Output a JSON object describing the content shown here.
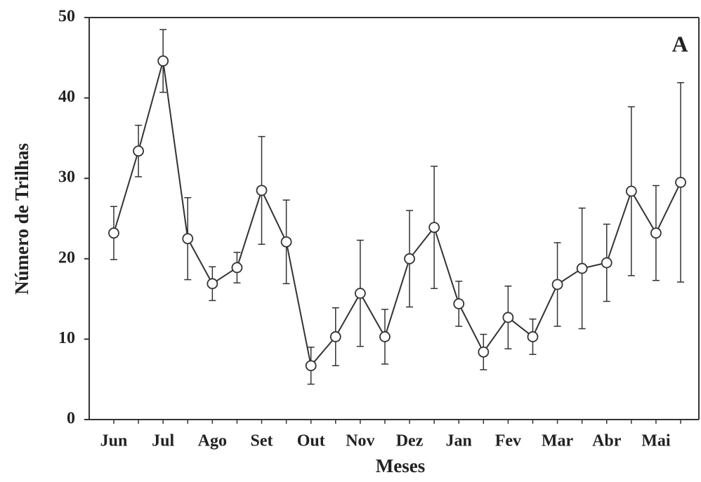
{
  "chart_data": {
    "type": "line",
    "annotation": "A",
    "ylabel": "Número de Trilhas",
    "xlabel": "Meses",
    "categories": [
      "Jun",
      null,
      "Jul",
      null,
      "Ago",
      null,
      "Set",
      null,
      "Out",
      null,
      "Nov",
      null,
      "Dez",
      null,
      "Jan",
      null,
      "Fev",
      null,
      "Mar",
      null,
      "Abr",
      null,
      "Mai",
      null
    ],
    "values": [
      23.2,
      33.4,
      44.6,
      22.5,
      16.9,
      18.9,
      28.5,
      22.1,
      6.7,
      10.3,
      15.7,
      10.3,
      20.0,
      23.9,
      14.4,
      8.4,
      12.7,
      10.3,
      16.8,
      18.8,
      19.5,
      28.4,
      23.2,
      29.5
    ],
    "errors": [
      3.3,
      3.2,
      3.9,
      5.1,
      2.1,
      1.9,
      6.7,
      5.2,
      2.3,
      3.6,
      6.6,
      3.4,
      6.0,
      7.6,
      2.8,
      2.2,
      3.9,
      2.2,
      5.2,
      7.5,
      4.8,
      10.5,
      5.9,
      12.4
    ],
    "color": "#333333",
    "ylim": [
      0,
      50
    ],
    "yticks": [
      0,
      10,
      20,
      30,
      40,
      50
    ]
  }
}
